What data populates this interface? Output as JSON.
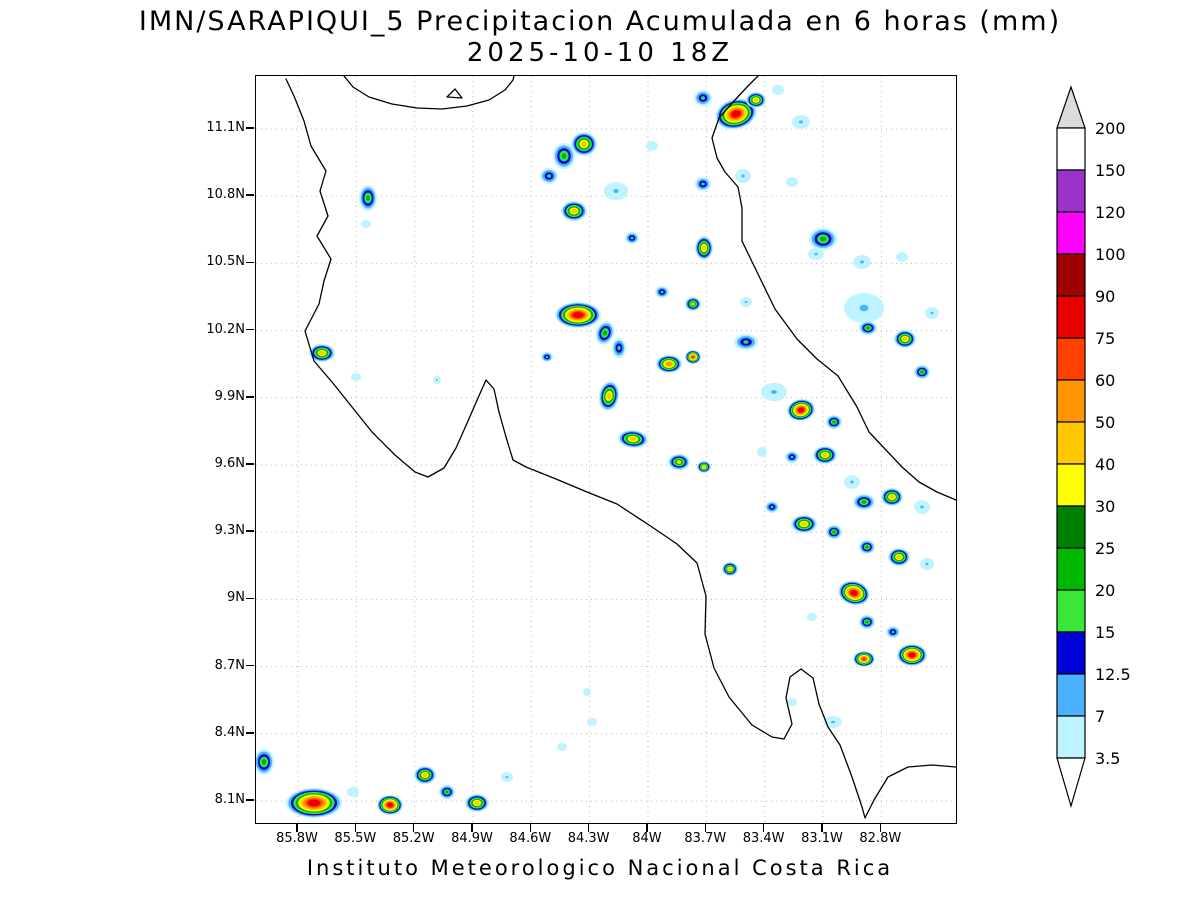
{
  "title": {
    "line1": "IMN/SARAPIQUI_5 Precipitacion Acumulada en 6 horas (mm)",
    "line2": "2025-10-10 18Z"
  },
  "caption": "Instituto Meteorologico Nacional Costa Rica",
  "chart_data": {
    "type": "heatmap",
    "title": "IMN/SARAPIQUI_5 Precipitacion Acumulada en 6 horas (mm)",
    "subtitle": "2025-10-10 18Z",
    "units": "mm",
    "region": "Costa Rica",
    "x_tick_labels": [
      "85.8W",
      "85.5W",
      "85.2W",
      "84.9W",
      "84.6W",
      "84.3W",
      "84W",
      "83.7W",
      "83.4W",
      "83.1W",
      "82.8W"
    ],
    "y_tick_labels": [
      "11.1N",
      "10.8N",
      "10.5N",
      "10.2N",
      "9.9N",
      "9.6N",
      "9.3N",
      "9N",
      "8.7N",
      "8.4N",
      "8.1N"
    ],
    "grid": true,
    "colorbar": {
      "labels": [
        "200",
        "150",
        "120",
        "100",
        "90",
        "75",
        "60",
        "50",
        "40",
        "30",
        "25",
        "20",
        "15",
        "12.5",
        "7",
        "3.5"
      ],
      "cell_colors_top_to_bottom": [
        "#ffffff",
        "#9933cc",
        "#ff00ff",
        "#a00000",
        "#e80000",
        "#ff4000",
        "#ff9500",
        "#ffc800",
        "#ffff00",
        "#008000",
        "#00b800",
        "#3ae63a",
        "#0000d8",
        "#4cb2ff",
        "#bef4ff"
      ],
      "arrow_top_color": "#dcdcdc",
      "arrow_bottom_color": "#ffffff"
    },
    "blob_ring_levels": [
      [
        3.5,
        "#bef4ff"
      ],
      [
        7,
        "#4cb2ff"
      ],
      [
        12.5,
        "#0000d8"
      ],
      [
        15,
        "#3ae63a"
      ],
      [
        20,
        "#00b800"
      ],
      [
        30,
        "#ffff00"
      ],
      [
        40,
        "#ffc800"
      ],
      [
        50,
        "#ff9500"
      ],
      [
        60,
        "#ff4000"
      ],
      [
        75,
        "#e80000"
      ]
    ],
    "cells": [
      [
        480,
        38,
        21,
        15,
        -15,
        75
      ],
      [
        500,
        24,
        10,
        8,
        0,
        40
      ],
      [
        447,
        22,
        9,
        8,
        0,
        15
      ],
      [
        545,
        46,
        9,
        7,
        0,
        7
      ],
      [
        522,
        14,
        6,
        5,
        0,
        3.5
      ],
      [
        308,
        80,
        11,
        13,
        0,
        20
      ],
      [
        328,
        68,
        13,
        12,
        0,
        40
      ],
      [
        293,
        100,
        9,
        8,
        0,
        15
      ],
      [
        318,
        135,
        13,
        10,
        0,
        40
      ],
      [
        360,
        115,
        12,
        9,
        0,
        7
      ],
      [
        396,
        70,
        6,
        5,
        0,
        3.5
      ],
      [
        447,
        108,
        8,
        7,
        0,
        15
      ],
      [
        487,
        100,
        8,
        7,
        0,
        7
      ],
      [
        536,
        106,
        6,
        5,
        0,
        3.5
      ],
      [
        112,
        122,
        9,
        13,
        0,
        20
      ],
      [
        110,
        148,
        5,
        4,
        0,
        3.5
      ],
      [
        376,
        162,
        7,
        6,
        0,
        15
      ],
      [
        448,
        172,
        9,
        12,
        0,
        40
      ],
      [
        567,
        163,
        14,
        11,
        0,
        20
      ],
      [
        560,
        178,
        8,
        6,
        0,
        7
      ],
      [
        606,
        186,
        9,
        7,
        0,
        7
      ],
      [
        646,
        181,
        6,
        5,
        0,
        3.5
      ],
      [
        406,
        216,
        7,
        6,
        0,
        15
      ],
      [
        437,
        228,
        8,
        7,
        0,
        30
      ],
      [
        490,
        226,
        6,
        5,
        0,
        7
      ],
      [
        322,
        239,
        23,
        13,
        0,
        75
      ],
      [
        349,
        257,
        9,
        12,
        20,
        20
      ],
      [
        363,
        272,
        7,
        10,
        0,
        15
      ],
      [
        291,
        281,
        6,
        5,
        0,
        15
      ],
      [
        353,
        320,
        10,
        15,
        10,
        40
      ],
      [
        413,
        288,
        13,
        9,
        0,
        50
      ],
      [
        437,
        281,
        8,
        7,
        0,
        60
      ],
      [
        490,
        266,
        12,
        8,
        0,
        15
      ],
      [
        518,
        316,
        13,
        9,
        0,
        7
      ],
      [
        545,
        334,
        14,
        11,
        -10,
        75
      ],
      [
        578,
        346,
        8,
        7,
        0,
        20
      ],
      [
        608,
        232,
        20,
        15,
        0,
        7
      ],
      [
        612,
        252,
        9,
        7,
        0,
        20
      ],
      [
        649,
        263,
        11,
        9,
        0,
        40
      ],
      [
        666,
        296,
        8,
        7,
        0,
        20
      ],
      [
        676,
        237,
        7,
        6,
        0,
        7
      ],
      [
        66,
        277,
        13,
        9,
        0,
        40
      ],
      [
        100,
        301,
        5,
        4,
        0,
        3.5
      ],
      [
        181,
        304,
        4,
        4,
        0,
        7
      ],
      [
        377,
        363,
        15,
        9,
        5,
        40
      ],
      [
        423,
        386,
        11,
        8,
        0,
        30
      ],
      [
        448,
        391,
        7,
        6,
        0,
        40
      ],
      [
        506,
        376,
        5,
        5,
        0,
        3.5
      ],
      [
        536,
        381,
        7,
        6,
        0,
        15
      ],
      [
        569,
        379,
        12,
        9,
        0,
        40
      ],
      [
        596,
        406,
        8,
        7,
        0,
        7
      ],
      [
        516,
        431,
        7,
        6,
        0,
        15
      ],
      [
        548,
        448,
        13,
        9,
        0,
        40
      ],
      [
        578,
        456,
        8,
        7,
        0,
        20
      ],
      [
        608,
        426,
        11,
        8,
        0,
        20
      ],
      [
        636,
        421,
        11,
        9,
        0,
        40
      ],
      [
        666,
        431,
        8,
        7,
        0,
        7
      ],
      [
        611,
        471,
        8,
        7,
        0,
        20
      ],
      [
        643,
        481,
        11,
        9,
        0,
        40
      ],
      [
        671,
        488,
        7,
        6,
        0,
        7
      ],
      [
        474,
        493,
        8,
        7,
        0,
        40
      ],
      [
        598,
        517,
        16,
        12,
        15,
        75
      ],
      [
        611,
        546,
        8,
        7,
        0,
        20
      ],
      [
        556,
        541,
        5,
        4,
        0,
        3.5
      ],
      [
        637,
        556,
        7,
        6,
        0,
        15
      ],
      [
        608,
        583,
        11,
        8,
        0,
        60
      ],
      [
        656,
        579,
        15,
        11,
        0,
        75
      ],
      [
        536,
        626,
        5,
        4,
        0,
        3.5
      ],
      [
        577,
        646,
        9,
        6,
        0,
        7
      ],
      [
        336,
        646,
        5,
        4,
        0,
        3.5
      ],
      [
        331,
        616,
        4,
        4,
        0,
        3.5
      ],
      [
        8,
        686,
        10,
        13,
        0,
        20
      ],
      [
        58,
        727,
        28,
        15,
        0,
        75
      ],
      [
        97,
        716,
        6,
        5,
        0,
        3.5
      ],
      [
        134,
        729,
        13,
        10,
        0,
        75
      ],
      [
        169,
        699,
        11,
        9,
        0,
        40
      ],
      [
        191,
        716,
        8,
        7,
        0,
        20
      ],
      [
        221,
        727,
        12,
        9,
        0,
        40
      ],
      [
        251,
        701,
        6,
        5,
        0,
        7
      ],
      [
        306,
        671,
        5,
        4,
        0,
        3.5
      ]
    ],
    "coastlines": [
      "M 30,3 L 38,20 L 48,45 L 55,70 L 70,95 L 64,115 L 72,140 L 61,160 L 75,183 L 68,205 L 63,228 L 49,255 L 58,285 L 76,306 L 96,331 L 116,356 L 139,379 L 159,396 L 172,401 L 188,392 L 200,372 L 212,345 L 222,322 L 230,304 L 238,313 L 243,336 L 250,361 L 257,384 L 270,391 L 300,403 L 331,416 L 361,428 L 396,451 L 421,468 L 441,487 L 450,520 L 449,558 L 458,592 L 473,621 L 496,649 L 516,661 L 528,663 L 536,648 L 530,622 L 534,601 L 545,593 L 557,602 L 563,628 L 572,651 L 584,669 L 596,701 L 606,731 L 609,742 L 618,724 L 632,701 L 652,691 L 676,689 L 700,691",
      "M 502,0 L 492,10 L 478,25 L 463,42 L 456,62 L 461,82 L 469,96 L 482,111 L 486,132 L 486,165 L 501,196 L 519,233 L 541,263 L 561,283 L 582,300 L 601,331 L 613,356 L 629,373 L 646,391 L 663,406 L 681,416 L 700,424",
      "M 88,0 L 97,11 L 113,21 L 136,28 L 161,32 L 186,33 L 211,30 L 233,24 L 249,14 L 257,4 L 258,0",
      "M 191,21 L 199,13 L 206,22 Z"
    ]
  }
}
